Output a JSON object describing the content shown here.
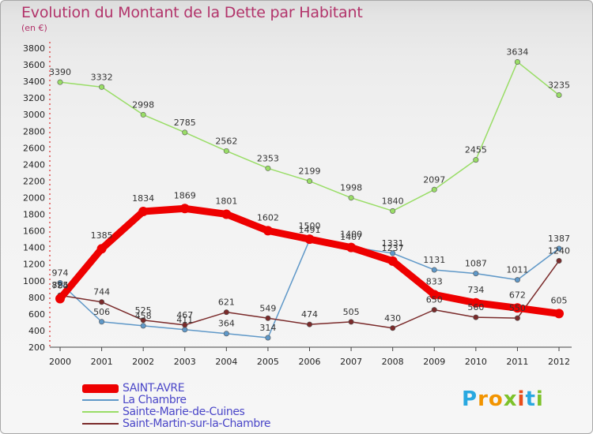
{
  "header": {
    "title": "Evolution du Montant de la Dette par Habitant",
    "subtitle": "(en €)"
  },
  "brand": {
    "logo_chars": [
      "P",
      "r",
      "o",
      "x",
      "i",
      "t",
      "i"
    ],
    "logo_colors": [
      "#29a8e0",
      "#f29400",
      "#f29400",
      "#7dc22a",
      "#e84e1b",
      "#29a8e0",
      "#7dc22a"
    ]
  },
  "chart_data": {
    "type": "line",
    "title": "Evolution du Montant de la Dette par Habitant",
    "subtitle": "(en €)",
    "x": [
      "2000",
      "2001",
      "2002",
      "2003",
      "2004",
      "2005",
      "2006",
      "2007",
      "2008",
      "2009",
      "2010",
      "2011",
      "2012"
    ],
    "yticks": [
      200,
      400,
      600,
      800,
      1000,
      1200,
      1400,
      1600,
      1800,
      2000,
      2200,
      2400,
      2600,
      2800,
      3000,
      3200,
      3400,
      3600,
      3800
    ],
    "ylim": [
      200,
      3800
    ],
    "grid": false,
    "legend_position": "bottom-left",
    "series": [
      {
        "name": "La Chambre",
        "color": "#5f98c8",
        "values": [
          974,
          506,
          458,
          411,
          364,
          314,
          1491,
          1407,
          1331,
          1131,
          1087,
          1011,
          1387
        ],
        "labels": [
          "974",
          "506",
          "458",
          "411",
          "364",
          "314",
          "1491",
          "1407",
          "1331",
          "1131",
          "1087",
          "1011",
          "1387"
        ]
      },
      {
        "name": "Sainte-Marie-de-Cuines",
        "color": "#99dd66",
        "values": [
          3390,
          3332,
          2998,
          2785,
          2562,
          2353,
          2199,
          1998,
          1840,
          2097,
          2455,
          3634,
          3235
        ],
        "labels": [
          "3390",
          "3332",
          "2998",
          "2785",
          "2562",
          "2353",
          "2199",
          "1998",
          "1840",
          "2097",
          "2455",
          "3634",
          "3235"
        ]
      },
      {
        "name": "Saint-Martin-sur-la-Chambre",
        "color": "#7a2a2a",
        "values": [
          825,
          744,
          525,
          467,
          621,
          549,
          474,
          505,
          430,
          650,
          560,
          550,
          1240
        ],
        "labels": [
          "825",
          "744",
          "525",
          "467",
          "621",
          "549",
          "474",
          "505",
          "430",
          "650",
          "560",
          "550",
          "1240"
        ]
      },
      {
        "name": "SAINT-AVRE",
        "color": "#ee0000",
        "values": [
          784,
          1385,
          1834,
          1869,
          1801,
          1602,
          1500,
          1400,
          1237,
          833,
          734,
          672,
          605
        ],
        "labels": [
          "784",
          "1385",
          "1834",
          "1869",
          "1801",
          "1602",
          "1500",
          "1400",
          "1237",
          "833",
          "734",
          "672",
          "605"
        ]
      }
    ],
    "legend": [
      {
        "name": "SAINT-AVRE",
        "color": "#ee0000",
        "text_color": "#4a46c8",
        "width": 11
      },
      {
        "name": "La Chambre",
        "color": "#5f98c8",
        "text_color": "#4a46c8",
        "width": 1.5
      },
      {
        "name": "Sainte-Marie-de-Cuines",
        "color": "#99dd66",
        "text_color": "#4a46c8",
        "width": 1.5
      },
      {
        "name": "Saint-Martin-sur-la-Chambre",
        "color": "#7a2a2a",
        "text_color": "#4a46c8",
        "width": 1.5
      }
    ]
  }
}
